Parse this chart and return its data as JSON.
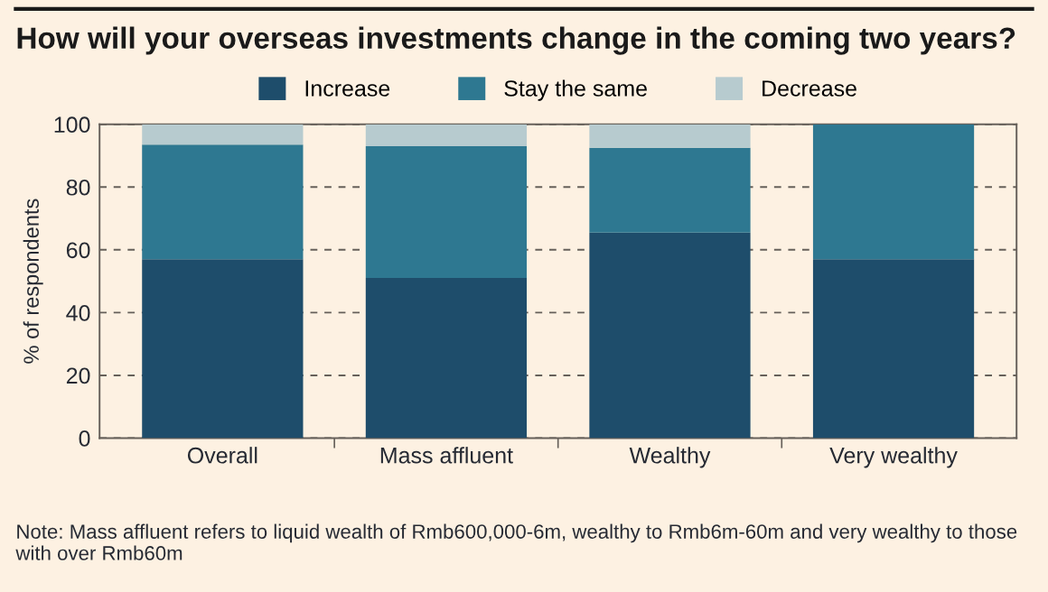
{
  "chart_data": {
    "type": "bar",
    "title": "How will your overseas investments change in the coming two years?",
    "ylabel": "% of respondents",
    "categories": [
      "Overall",
      "Mass affluent",
      "Wealthy",
      "Very wealthy"
    ],
    "series": [
      {
        "name": "Increase",
        "color": "#1e4d6b",
        "values": [
          57,
          51,
          65.5,
          57
        ]
      },
      {
        "name": "Stay the same",
        "color": "#2e7891",
        "values": [
          36.5,
          42,
          27,
          43
        ]
      },
      {
        "name": "Decrease",
        "color": "#b7cbcf",
        "values": [
          6.5,
          7,
          7.5,
          0
        ]
      }
    ],
    "stacked": true,
    "ylim": [
      0,
      100
    ],
    "yticks": [
      0,
      20,
      40,
      60,
      80,
      100
    ],
    "grid": "y",
    "legend": "top",
    "annotations": [
      "Note: Mass affluent refers to liquid wealth of Rmb600,000-6m, wealthy to Rmb6m-60m and very wealthy to those with over Rmb60m"
    ]
  }
}
